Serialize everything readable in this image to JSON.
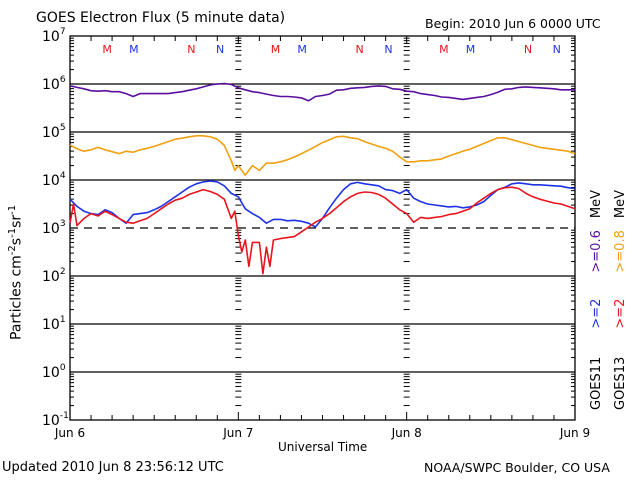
{
  "chart_data": {
    "type": "line",
    "title": "GOES Electron Flux (5 minute data)",
    "subtitle": "Begin: 2010 Jun 6 0000 UTC",
    "xlabel": "Universal Time",
    "ylabel": "Particles cm-2 s-1 sr-1",
    "ylabel_parts": {
      "base": "Particles cm",
      "e1": "-2",
      "s": "s",
      "e2": "-1",
      "sr": "sr",
      "e3": "-1"
    },
    "yscale": "log",
    "ylim": [
      0.1,
      10000000
    ],
    "ytick_exponents": [
      7,
      6,
      5,
      4,
      3,
      2,
      1,
      0,
      -1
    ],
    "xlim_hours": [
      0,
      72
    ],
    "xticks": [
      {
        "hour": 0,
        "label": "Jun 6"
      },
      {
        "hour": 24,
        "label": "Jun 7"
      },
      {
        "hour": 48,
        "label": "Jun 8"
      },
      {
        "hour": 72,
        "label": "Jun 9"
      }
    ],
    "gridlines_decades": [
      6,
      5,
      4,
      2,
      1,
      0
    ],
    "dashed_threshold": 1000,
    "markers": [
      {
        "hour": 5.3,
        "label": "M",
        "color": "#e8141e"
      },
      {
        "hour": 9.1,
        "label": "M",
        "color": "#1e32e6"
      },
      {
        "hour": 17.3,
        "label": "N",
        "color": "#e8141e"
      },
      {
        "hour": 21.4,
        "label": "N",
        "color": "#1e32e6"
      },
      {
        "hour": 29.3,
        "label": "M",
        "color": "#e8141e"
      },
      {
        "hour": 33.1,
        "label": "M",
        "color": "#1e32e6"
      },
      {
        "hour": 41.3,
        "label": "N",
        "color": "#e8141e"
      },
      {
        "hour": 45.4,
        "label": "N",
        "color": "#1e32e6"
      },
      {
        "hour": 53.3,
        "label": "M",
        "color": "#e8141e"
      },
      {
        "hour": 57.1,
        "label": "M",
        "color": "#1e32e6"
      },
      {
        "hour": 65.3,
        "label": "N",
        "color": "#e8141e"
      },
      {
        "hour": 69.4,
        "label": "N",
        "color": "#1e32e6"
      }
    ],
    "series": [
      {
        "name": "GOES11 >=0.6 MeV",
        "label": ">=0.6",
        "color": "#5a0fa0",
        "x_hours": [
          0,
          1,
          2,
          3,
          4,
          5,
          6,
          7,
          8,
          9,
          10,
          11,
          12,
          13,
          14,
          15,
          16,
          17,
          18,
          19,
          20,
          21,
          22,
          23,
          24,
          25,
          26,
          27,
          28,
          29,
          30,
          31,
          32,
          33,
          34,
          35,
          36,
          37,
          38,
          39,
          40,
          41,
          42,
          43,
          44,
          45,
          46,
          47,
          48,
          49,
          50,
          51,
          52,
          53,
          54,
          55,
          56,
          57,
          58,
          59,
          60,
          61,
          62,
          63,
          64,
          65,
          66,
          67,
          68,
          69,
          70,
          71,
          72
        ],
        "log_values": [
          5.96,
          5.93,
          5.9,
          5.86,
          5.85,
          5.86,
          5.84,
          5.84,
          5.8,
          5.74,
          5.8,
          5.8,
          5.8,
          5.8,
          5.8,
          5.82,
          5.84,
          5.87,
          5.9,
          5.94,
          5.98,
          6.0,
          6.01,
          5.99,
          5.92,
          5.88,
          5.84,
          5.82,
          5.79,
          5.76,
          5.74,
          5.74,
          5.73,
          5.71,
          5.65,
          5.74,
          5.76,
          5.79,
          5.87,
          5.88,
          5.91,
          5.92,
          5.93,
          5.95,
          5.96,
          5.95,
          5.9,
          5.89,
          5.85,
          5.84,
          5.8,
          5.78,
          5.76,
          5.73,
          5.72,
          5.7,
          5.68,
          5.7,
          5.72,
          5.74,
          5.78,
          5.83,
          5.89,
          5.9,
          5.93,
          5.94,
          5.93,
          5.92,
          5.91,
          5.9,
          5.88,
          5.88,
          5.88
        ]
      },
      {
        "name": "GOES13 >=0.8 MeV",
        "label": ">=0.8",
        "color": "#f0a010",
        "x_hours": [
          0,
          1,
          2,
          3,
          4,
          5,
          6,
          7,
          8,
          9,
          10,
          11,
          12,
          13,
          14,
          15,
          16,
          17,
          18,
          19,
          20,
          21,
          22,
          23,
          23.5,
          24,
          25,
          26,
          27,
          28,
          29,
          30,
          31,
          32,
          33,
          34,
          35,
          36,
          37,
          38,
          39,
          40,
          41,
          42,
          43,
          44,
          45,
          46,
          47,
          48,
          49,
          50,
          51,
          52,
          53,
          54,
          55,
          56,
          57,
          58,
          59,
          60,
          61,
          62,
          63,
          64,
          65,
          66,
          67,
          68,
          69,
          70,
          71,
          72
        ],
        "log_values": [
          4.73,
          4.65,
          4.6,
          4.63,
          4.68,
          4.63,
          4.59,
          4.55,
          4.6,
          4.58,
          4.63,
          4.66,
          4.7,
          4.75,
          4.8,
          4.85,
          4.87,
          4.9,
          4.92,
          4.92,
          4.9,
          4.85,
          4.72,
          4.4,
          4.2,
          4.3,
          4.1,
          4.3,
          4.2,
          4.35,
          4.35,
          4.38,
          4.42,
          4.48,
          4.55,
          4.62,
          4.7,
          4.78,
          4.84,
          4.9,
          4.91,
          4.88,
          4.86,
          4.8,
          4.75,
          4.7,
          4.66,
          4.6,
          4.48,
          4.38,
          4.38,
          4.4,
          4.4,
          4.42,
          4.44,
          4.5,
          4.55,
          4.6,
          4.64,
          4.7,
          4.76,
          4.82,
          4.88,
          4.88,
          4.84,
          4.8,
          4.76,
          4.72,
          4.68,
          4.66,
          4.64,
          4.62,
          4.6,
          4.55
        ]
      },
      {
        "name": "GOES11 >=2 MeV",
        "label": ">=2",
        "color": "#1e32e6",
        "x_hours": [
          0,
          1,
          2,
          3,
          4,
          5,
          6,
          7,
          8,
          9,
          10,
          11,
          12,
          13,
          14,
          15,
          16,
          17,
          18,
          19,
          20,
          21,
          22,
          23,
          24,
          25,
          26,
          27,
          28,
          29,
          30,
          31,
          32,
          33,
          34,
          35,
          36,
          37,
          38,
          39,
          40,
          41,
          42,
          43,
          44,
          45,
          46,
          47,
          48,
          49,
          50,
          51,
          52,
          53,
          54,
          55,
          56,
          57,
          58,
          59,
          60,
          61,
          62,
          63,
          64,
          65,
          66,
          67,
          68,
          69,
          70,
          71,
          72
        ],
        "log_values": [
          3.6,
          3.45,
          3.35,
          3.3,
          3.28,
          3.38,
          3.32,
          3.2,
          3.1,
          3.28,
          3.3,
          3.32,
          3.38,
          3.45,
          3.55,
          3.65,
          3.75,
          3.85,
          3.92,
          3.96,
          3.98,
          3.96,
          3.88,
          3.72,
          3.65,
          3.4,
          3.3,
          3.22,
          3.1,
          3.18,
          3.18,
          3.15,
          3.16,
          3.14,
          3.1,
          3.02,
          3.2,
          3.42,
          3.62,
          3.8,
          3.92,
          3.95,
          3.92,
          3.9,
          3.88,
          3.8,
          3.78,
          3.72,
          3.8,
          3.62,
          3.55,
          3.5,
          3.48,
          3.46,
          3.44,
          3.45,
          3.42,
          3.44,
          3.48,
          3.55,
          3.68,
          3.8,
          3.85,
          3.92,
          3.94,
          3.92,
          3.9,
          3.9,
          3.89,
          3.88,
          3.87,
          3.84,
          3.82
        ]
      },
      {
        "name": "GOES13 >=2 MeV",
        "label": ">=2",
        "color": "#e8141e",
        "x_hours": [
          0,
          0.5,
          1,
          2,
          3,
          4,
          5,
          6,
          7,
          8,
          9,
          10,
          11,
          12,
          13,
          14,
          15,
          16,
          17,
          18,
          19,
          20,
          21,
          22,
          23,
          23.5,
          24,
          24.5,
          25,
          25.5,
          26,
          27,
          27.5,
          28,
          28.5,
          29,
          30,
          31,
          32,
          33,
          34,
          35,
          36,
          37,
          38,
          39,
          40,
          41,
          42,
          43,
          44,
          45,
          46,
          47,
          48,
          49,
          50,
          51,
          52,
          53,
          54,
          55,
          56,
          57,
          58,
          59,
          60,
          61,
          62,
          63,
          64,
          65,
          66,
          67,
          68,
          69,
          70,
          71,
          72
        ],
        "log_values": [
          3.1,
          3.5,
          3.05,
          3.2,
          3.3,
          3.25,
          3.35,
          3.28,
          3.2,
          3.12,
          3.1,
          3.15,
          3.2,
          3.3,
          3.4,
          3.5,
          3.58,
          3.62,
          3.7,
          3.75,
          3.8,
          3.76,
          3.7,
          3.6,
          3.2,
          3.35,
          2.85,
          2.5,
          2.75,
          2.2,
          2.7,
          2.7,
          2.05,
          2.6,
          2.2,
          2.75,
          2.78,
          2.8,
          2.82,
          2.92,
          3.02,
          3.12,
          3.2,
          3.3,
          3.42,
          3.55,
          3.65,
          3.72,
          3.75,
          3.74,
          3.7,
          3.62,
          3.5,
          3.38,
          3.3,
          3.12,
          3.22,
          3.2,
          3.22,
          3.24,
          3.28,
          3.3,
          3.35,
          3.4,
          3.52,
          3.62,
          3.72,
          3.8,
          3.84,
          3.85,
          3.82,
          3.72,
          3.65,
          3.6,
          3.56,
          3.52,
          3.5,
          3.45,
          3.4
        ]
      }
    ],
    "right_legend": {
      "col1": [
        {
          "text": "GOES11",
          "color": "#000000"
        },
        {
          "text": ">=2",
          "color": "#1e32e6"
        },
        {
          "text": ">=0.6",
          "color": "#5a0fa0"
        },
        {
          "text": "MeV",
          "color": "#000000"
        }
      ],
      "col2": [
        {
          "text": "GOES13",
          "color": "#000000"
        },
        {
          "text": ">=2",
          "color": "#e8141e"
        },
        {
          "text": ">=0.8",
          "color": "#f0a010"
        },
        {
          "text": "MeV",
          "color": "#000000"
        }
      ]
    }
  },
  "footer": {
    "updated": "Updated 2010 Jun  8 23:56:12 UTC",
    "credit": "NOAA/SWPC Boulder, CO USA"
  }
}
